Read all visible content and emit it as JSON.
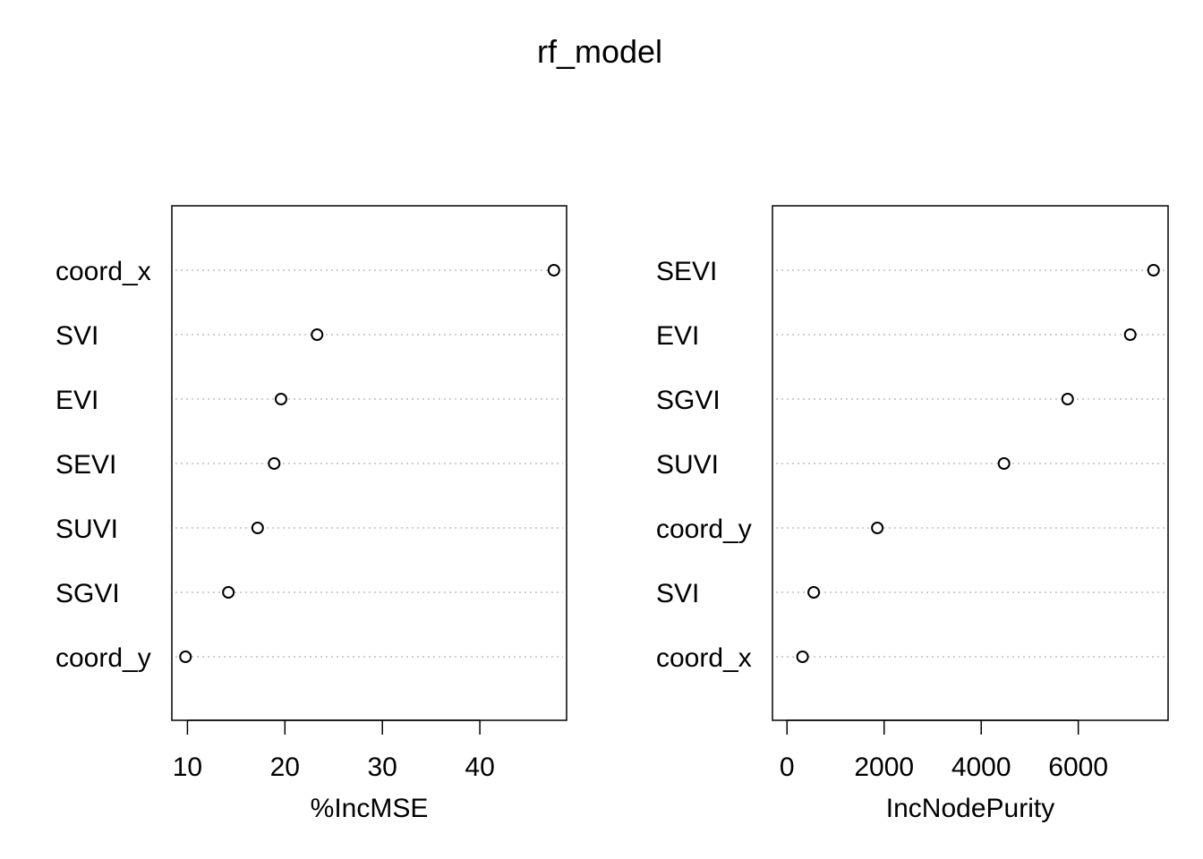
{
  "title": "rf_model",
  "chart_data": [
    {
      "type": "scatter",
      "subtype": "dotchart",
      "xlabel": "%IncMSE",
      "ylabel": "",
      "categories": [
        "coord_x",
        "SVI",
        "EVI",
        "SEVI",
        "SUVI",
        "SGVI",
        "coord_y"
      ],
      "values": [
        47.6,
        23.3,
        19.6,
        18.9,
        17.2,
        14.2,
        9.8
      ],
      "xlim": [
        8.4,
        48.9
      ],
      "xticks": [
        10,
        20,
        30,
        40
      ],
      "grid": "horizontal dotted",
      "legend": "none"
    },
    {
      "type": "scatter",
      "subtype": "dotchart",
      "xlabel": "IncNodePurity",
      "ylabel": "",
      "categories": [
        "SEVI",
        "EVI",
        "SGVI",
        "SUVI",
        "coord_y",
        "SVI",
        "coord_x"
      ],
      "values": [
        7550,
        7070,
        5780,
        4470,
        1860,
        550,
        320
      ],
      "xlim": [
        -300,
        7850
      ],
      "xticks": [
        0,
        2000,
        4000,
        6000
      ],
      "grid": "horizontal dotted",
      "legend": "none"
    }
  ]
}
